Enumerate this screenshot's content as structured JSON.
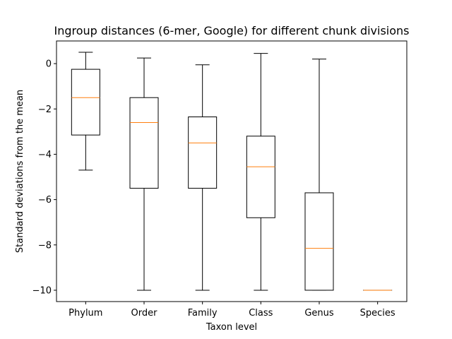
{
  "chart_data": {
    "type": "box",
    "title": "Ingroup distances (6-mer, Google) for different chunk divisions",
    "xlabel": "Taxon level",
    "ylabel": "Standard deviations from the mean",
    "categories": [
      "Phylum",
      "Order",
      "Family",
      "Class",
      "Genus",
      "Species"
    ],
    "boxes": [
      {
        "category": "Phylum",
        "whisker_low": -4.7,
        "q1": -3.15,
        "median": -1.5,
        "q3": -0.25,
        "whisker_high": 0.5
      },
      {
        "category": "Order",
        "whisker_low": -10.0,
        "q1": -5.5,
        "median": -2.6,
        "q3": -1.5,
        "whisker_high": 0.25
      },
      {
        "category": "Family",
        "whisker_low": -10.0,
        "q1": -5.5,
        "median": -3.5,
        "q3": -2.35,
        "whisker_high": -0.05
      },
      {
        "category": "Class",
        "whisker_low": -10.0,
        "q1": -6.8,
        "median": -4.55,
        "q3": -3.2,
        "whisker_high": 0.45
      },
      {
        "category": "Genus",
        "whisker_low": -10.0,
        "q1": -10.0,
        "median": -8.15,
        "q3": -5.7,
        "whisker_high": 0.2
      },
      {
        "category": "Species",
        "whisker_low": -10.0,
        "q1": -10.0,
        "median": -10.0,
        "q3": -10.0,
        "whisker_high": -10.0
      }
    ],
    "yticks": [
      0,
      -2,
      -4,
      -6,
      -8,
      -10
    ],
    "ylim": [
      -10.5,
      1.0
    ],
    "grid": false,
    "colors": {
      "box": "#000000",
      "median": "#ff7f0e",
      "background": "#ffffff"
    }
  }
}
